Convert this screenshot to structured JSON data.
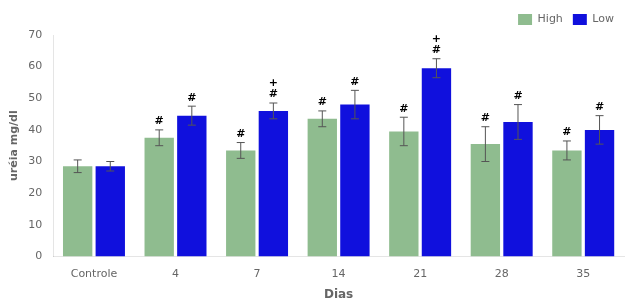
{
  "chart_data": {
    "type": "bar",
    "categories": [
      "Controle",
      "4",
      "7",
      "14",
      "21",
      "28",
      "35"
    ],
    "series": [
      {
        "name": "High",
        "color": "#8fbc8f",
        "values": [
          28.5,
          37.5,
          33.5,
          43.5,
          39.5,
          35.5,
          33.5
        ],
        "errors": [
          2.0,
          2.5,
          2.5,
          2.5,
          4.5,
          5.5,
          3.0
        ]
      },
      {
        "name": "Low",
        "color": "#1010dd",
        "values": [
          28.5,
          44.5,
          46.0,
          48.0,
          59.5,
          42.5,
          40.0
        ],
        "errors": [
          1.5,
          3.0,
          2.5,
          4.5,
          3.0,
          5.5,
          4.5
        ]
      }
    ],
    "xlabel": "Dias",
    "ylabel": "uréia mg/dl",
    "ylim": [
      0,
      70
    ],
    "yticks": [
      0,
      10,
      20,
      30,
      40,
      50,
      60,
      70
    ],
    "grid": false,
    "legend": "upper right",
    "annotations": [
      {
        "series": "High",
        "category": "4",
        "labels": [
          "#"
        ]
      },
      {
        "series": "High",
        "category": "7",
        "labels": [
          "#"
        ]
      },
      {
        "series": "High",
        "category": "14",
        "labels": [
          "#"
        ]
      },
      {
        "series": "High",
        "category": "21",
        "labels": [
          "#"
        ]
      },
      {
        "series": "High",
        "category": "28",
        "labels": [
          "#"
        ]
      },
      {
        "series": "High",
        "category": "35",
        "labels": [
          "#"
        ]
      },
      {
        "series": "Low",
        "category": "4",
        "labels": [
          "#"
        ]
      },
      {
        "series": "Low",
        "category": "7",
        "labels": [
          "+",
          "#"
        ]
      },
      {
        "series": "Low",
        "category": "14",
        "labels": [
          "#"
        ]
      },
      {
        "series": "Low",
        "category": "21",
        "labels": [
          "+",
          "#"
        ]
      },
      {
        "series": "Low",
        "category": "28",
        "labels": [
          "#"
        ]
      },
      {
        "series": "Low",
        "category": "35",
        "labels": [
          "#"
        ]
      }
    ]
  }
}
